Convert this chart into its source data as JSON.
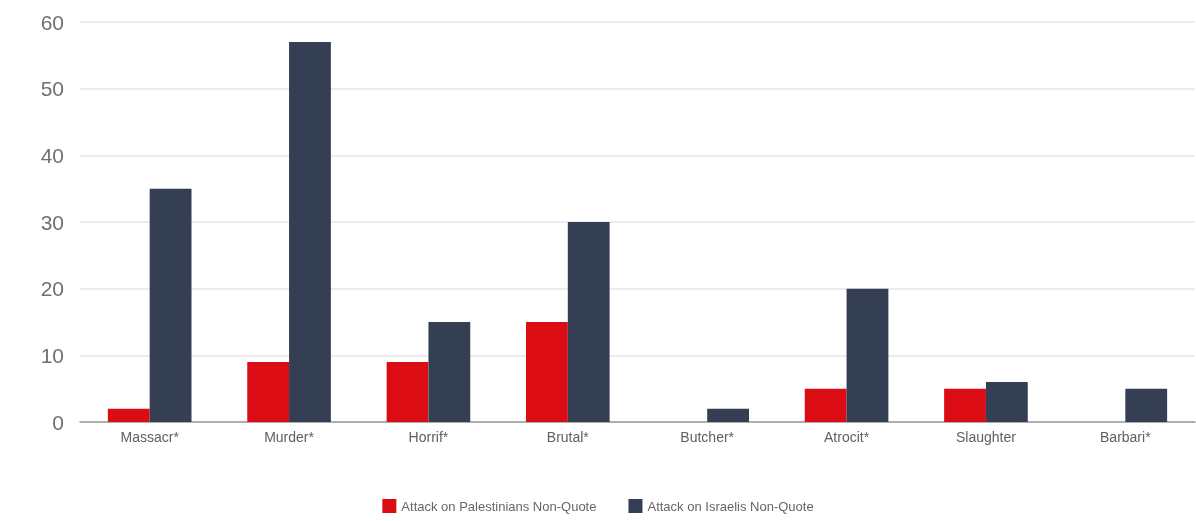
{
  "chart_data": {
    "type": "bar",
    "categories": [
      "Massacr*",
      "Murder*",
      "Horrif*",
      "Brutal*",
      "Butcher*",
      "Atrocit*",
      "Slaughter",
      "Barbari*"
    ],
    "series": [
      {
        "name": "Attack on Palestinians Non-Quote",
        "color": "#dc0c15",
        "values": [
          2,
          9,
          9,
          15,
          0,
          5,
          5,
          0
        ]
      },
      {
        "name": "Attack on Israelis Non-Quote",
        "color": "#353f53",
        "values": [
          35,
          57,
          15,
          30,
          2,
          20,
          6,
          5
        ]
      }
    ],
    "ylim": [
      0,
      60
    ],
    "yticks": [
      0,
      10,
      20,
      30,
      40,
      50,
      60
    ],
    "grid": "y",
    "legend": "bottom"
  }
}
